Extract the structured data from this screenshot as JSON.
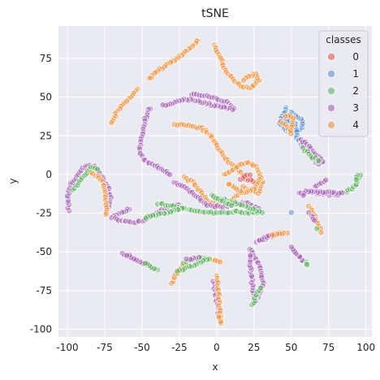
{
  "chart_data": {
    "type": "scatter",
    "title": "tSNE",
    "xlabel": "x",
    "ylabel": "y",
    "xlim": [
      -106,
      104
    ],
    "ylim": [
      -105,
      96
    ],
    "xticks": [
      -100,
      -75,
      -50,
      -25,
      0,
      25,
      50,
      75,
      100
    ],
    "yticks": [
      -100,
      -75,
      -50,
      -25,
      0,
      25,
      50,
      75
    ],
    "grid": true,
    "legend": {
      "title": "classes",
      "placement": "top-right"
    },
    "series": [
      {
        "name": "0",
        "color": "#e45756"
      },
      {
        "name": "1",
        "color": "#5b8fd0"
      },
      {
        "name": "2",
        "color": "#5fb55f"
      },
      {
        "name": "3",
        "color": "#a862b8"
      },
      {
        "name": "4",
        "color": "#f5913a"
      }
    ],
    "clusters": [
      {
        "cls": 4,
        "pts": [
          [
            -12,
            87
          ],
          [
            -20,
            80
          ],
          [
            -30,
            73
          ],
          [
            -38,
            68
          ],
          [
            -42,
            65
          ],
          [
            -45,
            62
          ]
        ]
      },
      {
        "cls": 4,
        "pts": [
          [
            -53,
            55
          ],
          [
            -57,
            51
          ],
          [
            -61,
            47
          ],
          [
            -65,
            43
          ],
          [
            -67,
            40
          ],
          [
            -69,
            36
          ],
          [
            -70,
            34
          ]
        ]
      },
      {
        "cls": 4,
        "pts": [
          [
            -2,
            84
          ],
          [
            0,
            80
          ],
          [
            2,
            76
          ],
          [
            4,
            72
          ],
          [
            6,
            68
          ],
          [
            10,
            63
          ],
          [
            15,
            58
          ],
          [
            20,
            56
          ],
          [
            24,
            57
          ],
          [
            28,
            61
          ],
          [
            26,
            65
          ],
          [
            22,
            64
          ],
          [
            18,
            61
          ]
        ]
      },
      {
        "cls": 3,
        "pts": [
          [
            -17,
            52
          ],
          [
            -10,
            51
          ],
          [
            -3,
            50
          ],
          [
            3,
            48
          ],
          [
            8,
            46
          ],
          [
            12,
            42
          ],
          [
            -22,
            49
          ],
          [
            -30,
            46
          ],
          [
            -36,
            45
          ]
        ]
      },
      {
        "cls": 3,
        "pts": [
          [
            -45,
            43
          ],
          [
            -48,
            36
          ],
          [
            -50,
            26
          ],
          [
            -52,
            16
          ],
          [
            -49,
            10
          ],
          [
            -45,
            7
          ],
          [
            -40,
            5
          ],
          [
            -36,
            3
          ],
          [
            -31,
            0
          ]
        ]
      },
      {
        "cls": 4,
        "pts": [
          [
            -28,
            32
          ],
          [
            -22,
            32
          ],
          [
            -16,
            31
          ],
          [
            -10,
            30
          ],
          [
            -5,
            26
          ],
          [
            -1,
            21
          ],
          [
            2,
            16
          ],
          [
            6,
            10
          ],
          [
            12,
            5
          ],
          [
            18,
            0
          ]
        ]
      },
      {
        "cls": 4,
        "pts": [
          [
            -22,
            -2
          ],
          [
            -16,
            -5
          ],
          [
            -10,
            -12
          ],
          [
            -6,
            -17
          ],
          [
            0,
            -20
          ],
          [
            6,
            -19
          ],
          [
            10,
            -17
          ],
          [
            14,
            -13
          ],
          [
            18,
            -8
          ],
          [
            22,
            -10
          ],
          [
            28,
            -12
          ],
          [
            31,
            -5
          ]
        ]
      },
      {
        "cls": 3,
        "pts": [
          [
            -28,
            -5
          ],
          [
            -20,
            -9
          ],
          [
            -13,
            -15
          ],
          [
            -6,
            -20
          ],
          [
            4,
            -21
          ],
          [
            12,
            -19
          ],
          [
            20,
            -18
          ],
          [
            28,
            -22
          ]
        ]
      },
      {
        "cls": 2,
        "pts": [
          [
            -18,
            -23
          ],
          [
            -8,
            -24
          ],
          [
            2,
            -25
          ],
          [
            12,
            -24
          ],
          [
            22,
            -25
          ],
          [
            30,
            -24
          ],
          [
            -3,
            -14
          ],
          [
            10,
            -20
          ]
        ]
      },
      {
        "cls": 4,
        "pts": [
          [
            5,
            0
          ],
          [
            10,
            3
          ],
          [
            15,
            6
          ],
          [
            20,
            8
          ],
          [
            25,
            6
          ],
          [
            28,
            2
          ],
          [
            30,
            -2
          ],
          [
            26,
            -8
          ],
          [
            20,
            -12
          ],
          [
            14,
            -10
          ],
          [
            8,
            -6
          ]
        ]
      },
      {
        "cls": 3,
        "pts": [
          [
            -58,
            -22
          ],
          [
            -64,
            -25
          ],
          [
            -70,
            -28
          ],
          [
            -62,
            -30
          ],
          [
            -56,
            -31
          ],
          [
            -50,
            -30
          ],
          [
            -44,
            -27
          ],
          [
            -38,
            -24
          ],
          [
            -32,
            -21
          ],
          [
            -25,
            -20
          ]
        ]
      },
      {
        "cls": 2,
        "pts": [
          [
            -39,
            -19
          ],
          [
            -30,
            -20
          ],
          [
            -22,
            -22
          ],
          [
            -48,
            -28
          ]
        ]
      },
      {
        "cls": 0,
        "pts": [
          [
            20,
            -2
          ],
          [
            24,
            -4
          ],
          [
            16,
            -3
          ],
          [
            22,
            0
          ]
        ]
      },
      {
        "cls": 3,
        "pts": [
          [
            -99,
            -23
          ],
          [
            -100,
            -15
          ],
          [
            -98,
            -7
          ],
          [
            -94,
            -1
          ],
          [
            -90,
            4
          ],
          [
            -86,
            6
          ],
          [
            -82,
            5
          ],
          [
            -79,
            2
          ],
          [
            -76,
            -2
          ],
          [
            -73,
            -8
          ],
          [
            -71,
            -15
          ],
          [
            -73,
            -22
          ]
        ]
      },
      {
        "cls": 2,
        "pts": [
          [
            -96,
            -10
          ],
          [
            -92,
            -4
          ],
          [
            -84,
            5
          ],
          [
            -80,
            3
          ]
        ]
      },
      {
        "cls": 4,
        "pts": [
          [
            -84,
            1
          ],
          [
            -77,
            -3
          ],
          [
            -74,
            -18
          ],
          [
            -74,
            -26
          ]
        ]
      },
      {
        "cls": 1,
        "pts": [
          [
            47,
            43
          ],
          [
            44,
            38
          ],
          [
            42,
            33
          ],
          [
            45,
            31
          ],
          [
            48,
            28
          ],
          [
            52,
            27
          ],
          [
            56,
            29
          ],
          [
            58,
            33
          ],
          [
            55,
            37
          ],
          [
            50,
            40
          ],
          [
            46,
            35
          ],
          [
            52,
            34
          ],
          [
            54,
            24
          ],
          [
            58,
            18
          ],
          [
            62,
            15
          ]
        ]
      },
      {
        "cls": 4,
        "pts": [
          [
            43,
            34
          ],
          [
            47,
            31
          ],
          [
            50,
            27
          ],
          [
            51,
            37
          ],
          [
            46,
            38
          ]
        ]
      },
      {
        "cls": 3,
        "pts": [
          [
            60,
            16
          ],
          [
            64,
            14
          ],
          [
            67,
            10
          ],
          [
            72,
            8
          ],
          [
            64,
            12
          ],
          [
            68,
            7
          ],
          [
            56,
            22
          ],
          [
            62,
            19
          ],
          [
            66,
            13
          ],
          [
            70,
            10
          ]
        ]
      },
      {
        "cls": 2,
        "pts": [
          [
            58,
            17
          ],
          [
            63,
            12
          ],
          [
            69,
            9
          ]
        ]
      },
      {
        "cls": 3,
        "pts": [
          [
            55,
            -12
          ],
          [
            60,
            -11
          ],
          [
            65,
            -12
          ],
          [
            70,
            -12
          ],
          [
            75,
            -13
          ],
          [
            80,
            -13
          ],
          [
            85,
            -12
          ],
          [
            60,
            -11
          ],
          [
            58,
            -13
          ]
        ]
      },
      {
        "cls": 2,
        "pts": [
          [
            87,
            -11
          ],
          [
            91,
            -9
          ],
          [
            94,
            -6
          ],
          [
            96,
            0
          ],
          [
            93,
            -3
          ]
        ]
      },
      {
        "cls": 4,
        "pts": [
          [
            62,
            -20
          ],
          [
            65,
            -26
          ],
          [
            68,
            -32
          ],
          [
            70,
            -37
          ]
        ]
      },
      {
        "cls": 3,
        "pts": [
          [
            62,
            -25
          ],
          [
            66,
            -30
          ]
        ]
      },
      {
        "cls": 2,
        "pts": [
          [
            67,
            -35
          ]
        ]
      },
      {
        "cls": 3,
        "pts": [
          [
            27,
            -44
          ],
          [
            32,
            -42
          ],
          [
            38,
            -39
          ],
          [
            44,
            -37
          ],
          [
            28,
            -43
          ],
          [
            35,
            -40
          ]
        ]
      },
      {
        "cls": 4,
        "pts": [
          [
            42,
            -37
          ],
          [
            47,
            -38
          ],
          [
            37,
            -39
          ]
        ]
      },
      {
        "cls": 3,
        "pts": [
          [
            52,
            -49
          ],
          [
            55,
            -53
          ],
          [
            58,
            -56
          ],
          [
            50,
            -47
          ]
        ]
      },
      {
        "cls": 2,
        "pts": [
          [
            60,
            -57
          ],
          [
            61,
            -58
          ]
        ]
      },
      {
        "cls": 3,
        "pts": [
          [
            22,
            -48
          ],
          [
            25,
            -52
          ],
          [
            27,
            -56
          ],
          [
            30,
            -62
          ],
          [
            31,
            -70
          ],
          [
            28,
            -78
          ],
          [
            25,
            -83
          ],
          [
            22,
            -52
          ]
        ]
      },
      {
        "cls": 2,
        "pts": [
          [
            24,
            -84
          ],
          [
            29,
            -73
          ]
        ]
      },
      {
        "cls": 3,
        "pts": [
          [
            -2,
            -69
          ],
          [
            -1,
            -75
          ],
          [
            0,
            -82
          ],
          [
            2,
            -88
          ],
          [
            3,
            -95
          ],
          [
            1,
            -90
          ]
        ]
      },
      {
        "cls": 4,
        "pts": [
          [
            0,
            -65
          ],
          [
            3,
            -96
          ],
          [
            2,
            -92
          ]
        ]
      },
      {
        "cls": 3,
        "pts": [
          [
            -63,
            -51
          ],
          [
            -57,
            -54
          ],
          [
            -50,
            -57
          ],
          [
            -44,
            -60
          ],
          [
            -60,
            -52
          ]
        ]
      },
      {
        "cls": 2,
        "pts": [
          [
            -40,
            -62
          ],
          [
            -48,
            -57
          ]
        ]
      },
      {
        "cls": 4,
        "pts": [
          [
            -30,
            -70
          ],
          [
            -28,
            -66
          ],
          [
            -25,
            -61
          ],
          [
            -18,
            -56
          ],
          [
            -10,
            -54
          ],
          [
            -2,
            -55
          ],
          [
            2,
            -57
          ]
        ]
      },
      {
        "cls": 2,
        "pts": [
          [
            -22,
            -57
          ],
          [
            -14,
            -54
          ],
          [
            -5,
            -54
          ],
          [
            -26,
            -63
          ]
        ]
      },
      {
        "cls": 3,
        "pts": [
          [
            -12,
            -54
          ],
          [
            -20,
            -55
          ]
        ]
      },
      {
        "cls": 1,
        "pts": [
          [
            50,
            -25
          ]
        ]
      },
      {
        "cls": 3,
        "pts": [
          [
            66,
            -8
          ],
          [
            73,
            -4
          ]
        ]
      }
    ]
  }
}
